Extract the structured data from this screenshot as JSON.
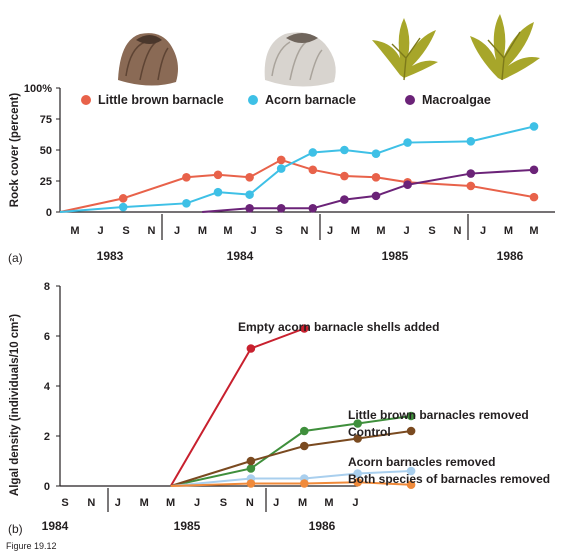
{
  "figure_label": "Figure 19.12",
  "colors": {
    "little_brown": "#e8624a",
    "acorn": "#3ec0e6",
    "macroalgae": "#6b2378",
    "empty_shells": "#c8202e",
    "lb_removed": "#3f8f3c",
    "control": "#7a4a20",
    "acorn_removed": "#a9cfee",
    "both_removed": "#f08a3a"
  },
  "illustrations": [
    "little-brown-barnacle-image",
    "acorn-barnacle-image",
    "macroalgae-image",
    "macroalgae-image"
  ],
  "chart_data": [
    {
      "type": "line",
      "panel_label": "(a)",
      "ylabel": "Rock cover (percent)",
      "ylim": [
        0,
        100
      ],
      "yticks": [
        "0",
        "25",
        "50",
        "75",
        "100%"
      ],
      "x_month_labels": [
        "M",
        "J",
        "S",
        "N",
        "J",
        "M",
        "M",
        "J",
        "S",
        "N",
        "J",
        "M",
        "M",
        "J",
        "S",
        "N",
        "J",
        "M",
        "M"
      ],
      "x_years": [
        "1983",
        "1984",
        "1985",
        "1986"
      ],
      "legend_position": "top",
      "series": [
        {
          "name": "Little brown barnacle",
          "x": [
            0,
            4,
            8,
            10,
            12,
            14,
            16,
            18,
            20,
            22,
            26,
            30
          ],
          "values": [
            0,
            11,
            28,
            30,
            28,
            42,
            34,
            29,
            28,
            24,
            21,
            12
          ]
        },
        {
          "name": "Acorn barnacle",
          "x": [
            0,
            4,
            8,
            10,
            12,
            14,
            16,
            18,
            20,
            22,
            26,
            30
          ],
          "values": [
            0,
            4,
            7,
            16,
            14,
            35,
            48,
            50,
            47,
            56,
            57,
            69
          ]
        },
        {
          "name": "Macroalgae",
          "x": [
            9,
            12,
            14,
            16,
            18,
            20,
            22,
            26,
            30
          ],
          "values": [
            0,
            3,
            3,
            3,
            10,
            13,
            22,
            31,
            34
          ]
        }
      ]
    },
    {
      "type": "line",
      "panel_label": "(b)",
      "ylabel": "Algal density (individuals/10 cm²)",
      "ylim": [
        0,
        8
      ],
      "yticks": [
        "0",
        "2",
        "4",
        "6",
        "8"
      ],
      "x_month_labels": [
        "S",
        "N",
        "J",
        "M",
        "M",
        "J",
        "S",
        "N",
        "J",
        "M",
        "M",
        "J"
      ],
      "x_years": [
        "1984",
        "1985",
        "1986"
      ],
      "series": [
        {
          "name": "Empty acorn barnacle shells added",
          "x": [
            4,
            7,
            9
          ],
          "values": [
            0,
            5.5,
            6.3
          ]
        },
        {
          "name": "Little brown barnacles removed",
          "x": [
            4,
            7,
            9,
            11,
            13
          ],
          "values": [
            0,
            0.7,
            2.2,
            2.5,
            2.8
          ]
        },
        {
          "name": "Control",
          "x": [
            4,
            7,
            9,
            11,
            13
          ],
          "values": [
            0,
            1.0,
            1.6,
            1.9,
            2.2
          ]
        },
        {
          "name": "Acorn barnacles removed",
          "x": [
            4,
            7,
            9,
            11,
            13
          ],
          "values": [
            0,
            0.3,
            0.3,
            0.5,
            0.6
          ]
        },
        {
          "name": "Both species of barnacles removed",
          "x": [
            4,
            7,
            9,
            11,
            13
          ],
          "values": [
            0,
            0.1,
            0.1,
            0.15,
            0.05
          ]
        }
      ]
    }
  ]
}
